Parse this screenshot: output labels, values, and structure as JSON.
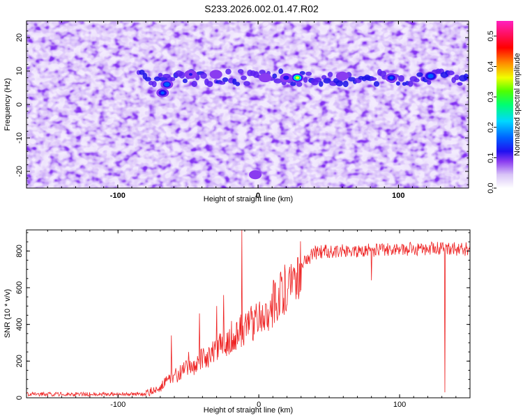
{
  "title": "S233.2026.002.01.47.R02",
  "chart_data": [
    {
      "type": "heatmap",
      "xlabel": "Height of straight line (km)",
      "ylabel": "Frequency (Hz)",
      "colorbar_label": "Normalized spectral amplitude",
      "xlim": [
        -165,
        150
      ],
      "ylim": [
        -25,
        25
      ],
      "xticks": [
        {
          "value": -100,
          "label": "-100"
        },
        {
          "value": 0,
          "label": "0"
        },
        {
          "value": 100,
          "label": "100"
        }
      ],
      "yticks": [
        {
          "value": 20,
          "label": "20"
        },
        {
          "value": 10,
          "label": "10"
        },
        {
          "value": 0,
          "label": "0"
        },
        {
          "value": -10,
          "label": "-10"
        },
        {
          "value": -20,
          "label": "-20"
        }
      ],
      "colorbar_range": [
        0,
        0.55
      ],
      "colorbar_ticks": [
        {
          "value": 0.0,
          "label": "0.0"
        },
        {
          "value": 0.1,
          "label": "0.1"
        },
        {
          "value": 0.2,
          "label": "0.2"
        },
        {
          "value": 0.3,
          "label": "0.3"
        },
        {
          "value": 0.4,
          "label": "0.4"
        },
        {
          "value": 0.5,
          "label": "0.5"
        }
      ],
      "band_frequency": 8,
      "band_x_range": [
        -85,
        150
      ],
      "hotspots": [
        {
          "x": 28,
          "y": 8,
          "value": 0.38
        },
        {
          "x": 123,
          "y": 8.5,
          "value": 0.22
        },
        {
          "x": -65,
          "y": 6,
          "value": 0.2
        },
        {
          "x": -68,
          "y": 3.5,
          "value": 0.18
        },
        {
          "x": 95,
          "y": 8,
          "value": 0.18
        },
        {
          "x": 20,
          "y": 8,
          "value": 0.15
        },
        {
          "x": -48,
          "y": 9,
          "value": 0.13
        },
        {
          "x": -30,
          "y": 9,
          "value": 0.12
        },
        {
          "x": -2,
          "y": -21,
          "value": 0.12
        },
        {
          "x": 5,
          "y": 8,
          "value": 0.1
        },
        {
          "x": 60,
          "y": 8.5,
          "value": 0.1
        }
      ]
    },
    {
      "type": "line",
      "xlabel": "Height of straight line (km)",
      "ylabel": "SNR (10 * v/v)",
      "xlim": [
        -165,
        150
      ],
      "ylim": [
        0,
        915
      ],
      "xticks": [
        {
          "value": -100,
          "label": "-100"
        },
        {
          "value": 0,
          "label": "0"
        },
        {
          "value": 100,
          "label": "100"
        }
      ],
      "yticks": [
        {
          "value": 0,
          "label": "0"
        },
        {
          "value": 200,
          "label": "200"
        },
        {
          "value": 400,
          "label": "400"
        },
        {
          "value": 600,
          "label": "600"
        },
        {
          "value": 800,
          "label": "800"
        }
      ],
      "color": "#ee2222",
      "profile_x": [
        -165,
        -100,
        -80,
        -70,
        -60,
        -50,
        -40,
        -30,
        -20,
        -10,
        0,
        10,
        20,
        30,
        40,
        50,
        60,
        80,
        100,
        120,
        150
      ],
      "profile_y": [
        20,
        20,
        22,
        60,
        120,
        160,
        210,
        260,
        330,
        380,
        440,
        510,
        610,
        730,
        790,
        800,
        800,
        805,
        810,
        815,
        810
      ],
      "spikes": [
        {
          "x": -12,
          "y": 915
        },
        {
          "x": -30,
          "y": 500
        },
        {
          "x": -42,
          "y": 460
        },
        {
          "x": -62,
          "y": 340
        },
        {
          "x": -25,
          "y": 560
        },
        {
          "x": -50,
          "y": 250
        },
        {
          "x": 132,
          "y": 30
        },
        {
          "x": 80,
          "y": 640
        }
      ]
    }
  ]
}
